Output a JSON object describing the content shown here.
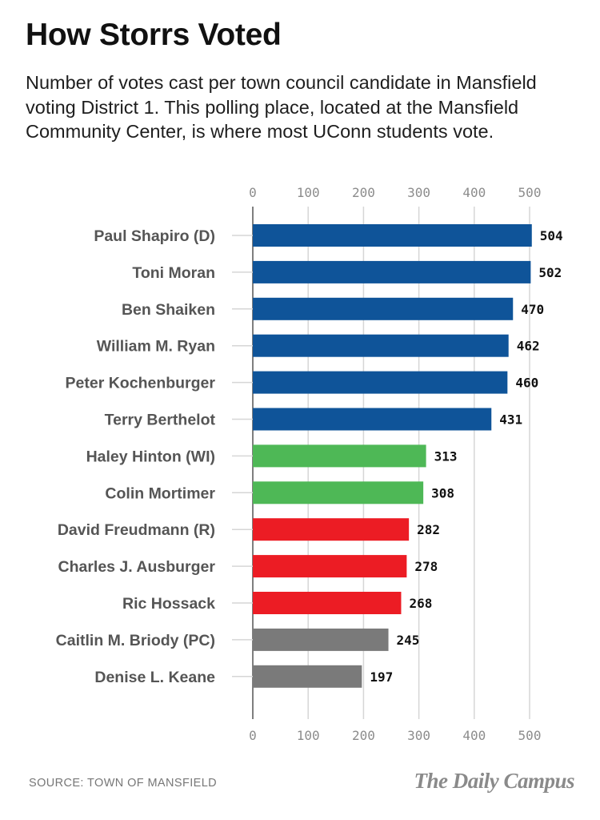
{
  "header": {
    "title": "How Storrs Voted",
    "subtitle": "Number of votes cast per town council candidate in Mansfield voting District 1. This polling place, located at the Mansfield Community Center, is where most UConn students vote."
  },
  "footer": {
    "source": "SOURCE: TOWN OF MANSFIELD",
    "brand": "The Daily Campus"
  },
  "colors": {
    "democrat": "#0f5499",
    "write_in": "#4eb856",
    "republican": "#ec1c24",
    "pc": "#7a7a7a",
    "gridline": "#d6d6d6",
    "axis": "#555555"
  },
  "chart_data": {
    "type": "bar",
    "orientation": "horizontal",
    "title": "How Storrs Voted",
    "xlabel": "",
    "ylabel": "",
    "xlim": [
      0,
      500
    ],
    "x_ticks": [
      "0",
      "100",
      "200",
      "300",
      "400",
      "500"
    ],
    "grid": true,
    "categories": [
      "Paul Shapiro (D)",
      "Toni Moran",
      "Ben Shaiken",
      "William M. Ryan",
      "Peter Kochenburger",
      "Terry Berthelot",
      "Haley Hinton (WI)",
      "Colin Mortimer",
      "David Freudmann (R)",
      "Charles J. Ausburger",
      "Ric Hossack",
      "Caitlin M. Briody (PC)",
      "Denise L. Keane"
    ],
    "values": [
      504,
      502,
      470,
      462,
      460,
      431,
      313,
      308,
      282,
      278,
      268,
      245,
      197
    ],
    "parties": [
      "democrat",
      "democrat",
      "democrat",
      "democrat",
      "democrat",
      "democrat",
      "write_in",
      "write_in",
      "republican",
      "republican",
      "republican",
      "pc",
      "pc"
    ]
  }
}
